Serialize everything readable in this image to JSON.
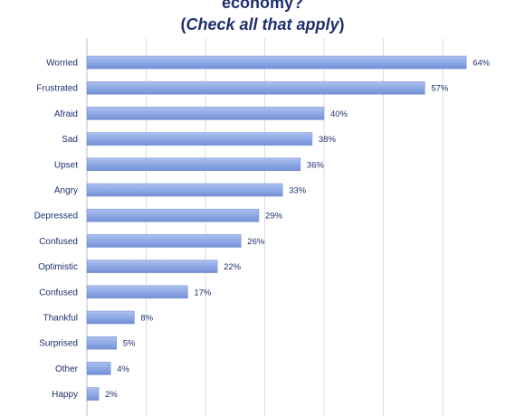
{
  "chart_data": {
    "type": "bar",
    "orientation": "horizontal",
    "title_line1": "economy?",
    "title_line2_open": "(",
    "title_line2_italic": "Check all that apply",
    "title_line2_close": ")",
    "categories": [
      "Worried",
      "Frustrated",
      "Afraid",
      "Sad",
      "Upset",
      "Angry",
      "Depressed",
      "Confused",
      "Optimistic",
      "Confused",
      "Thankful",
      "Surprised",
      "Other",
      "Happy"
    ],
    "values": [
      64,
      57,
      40,
      38,
      36,
      33,
      29,
      26,
      22,
      17,
      8,
      5,
      4,
      2
    ],
    "value_labels": [
      "64%",
      "57%",
      "40%",
      "38%",
      "36%",
      "33%",
      "29%",
      "26%",
      "22%",
      "17%",
      "8%",
      "5%",
      "4%",
      "2%"
    ],
    "xlim": [
      0,
      70
    ],
    "grid": true,
    "bar_color": "#8ea9e4",
    "text_color": "#1f2f6e"
  }
}
